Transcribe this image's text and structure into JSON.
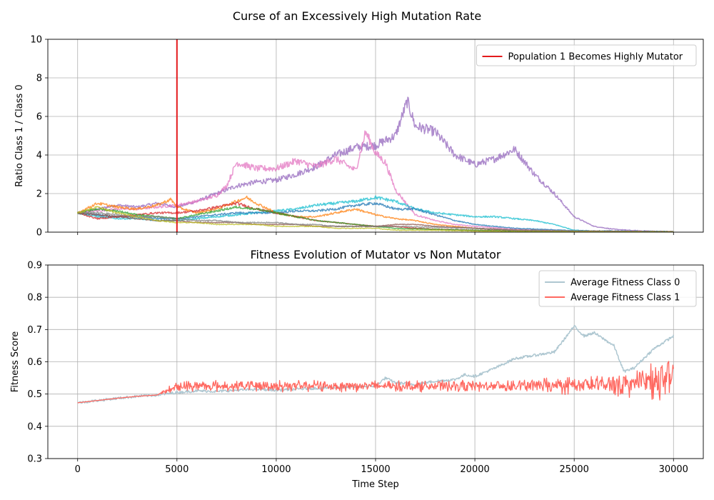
{
  "figure": {
    "suptitle": "Curse of an Excessively High Mutation Rate"
  },
  "chart_data": [
    {
      "type": "line",
      "title": "",
      "xlabel": "",
      "ylabel": "Ratio Class 1 / Class 0",
      "xlim": [
        -1500,
        31500
      ],
      "ylim": [
        0,
        10
      ],
      "xticks": [
        0,
        5000,
        10000,
        15000,
        20000,
        25000,
        30000
      ],
      "yticks": [
        0,
        2,
        4,
        6,
        8,
        10
      ],
      "show_xtick_labels": false,
      "grid": true,
      "legend_position": "top-right",
      "vline": {
        "x": 5000,
        "label": "Population 1 Becomes Highly Mutator",
        "color": "#e41a1c"
      },
      "series": [
        {
          "color": "#9467bd",
          "x": [
            0,
            1000,
            2000,
            3000,
            4000,
            5000,
            6000,
            7000,
            8000,
            9000,
            10000,
            11000,
            12000,
            13000,
            14000,
            15000,
            16000,
            16600,
            17000,
            18000,
            19000,
            20000,
            21000,
            22000,
            23000,
            24000,
            25000,
            26000,
            27000,
            28000,
            29000,
            30000
          ],
          "y": [
            1.0,
            1.2,
            1.4,
            1.3,
            1.5,
            1.3,
            1.6,
            2.0,
            2.4,
            2.6,
            2.7,
            3.0,
            3.4,
            4.0,
            4.4,
            4.5,
            5.0,
            6.8,
            5.5,
            5.2,
            4.0,
            3.5,
            3.8,
            4.3,
            3.0,
            2.0,
            0.8,
            0.3,
            0.15,
            0.08,
            0.05,
            0.02
          ]
        },
        {
          "color": "#e377c2",
          "x": [
            0,
            1000,
            2000,
            3000,
            4000,
            5000,
            6000,
            7000,
            7500,
            8000,
            9000,
            10000,
            11000,
            12000,
            13000,
            14000,
            14500,
            15000,
            15500,
            16000,
            17000,
            18000,
            19000,
            20000,
            22000,
            25000,
            30000
          ],
          "y": [
            1.0,
            1.1,
            1.2,
            1.2,
            1.3,
            1.4,
            1.6,
            1.9,
            2.4,
            3.6,
            3.3,
            3.3,
            3.7,
            3.4,
            3.8,
            3.2,
            5.2,
            4.1,
            3.6,
            2.2,
            0.9,
            0.6,
            0.4,
            0.3,
            0.15,
            0.06,
            0.02
          ]
        },
        {
          "color": "#17becf",
          "x": [
            0,
            1000,
            2000,
            3000,
            4000,
            5000,
            6000,
            7000,
            8000,
            9000,
            10000,
            11000,
            12000,
            13000,
            14000,
            15000,
            16000,
            17000,
            18000,
            19000,
            20000,
            21000,
            22000,
            23000,
            24000,
            25000,
            26000,
            30000
          ],
          "y": [
            1.0,
            0.8,
            0.7,
            0.7,
            0.6,
            0.6,
            0.7,
            0.8,
            0.9,
            1.0,
            1.1,
            1.2,
            1.4,
            1.5,
            1.6,
            1.8,
            1.6,
            1.2,
            1.0,
            0.9,
            0.8,
            0.8,
            0.7,
            0.6,
            0.4,
            0.1,
            0.05,
            0.03
          ]
        },
        {
          "color": "#1f77b4",
          "x": [
            0,
            1000,
            2000,
            3000,
            4000,
            5000,
            6000,
            7000,
            8000,
            9000,
            10000,
            11000,
            12000,
            13000,
            14000,
            15000,
            16000,
            17000,
            18000,
            19000,
            20000,
            22000,
            25000,
            30000
          ],
          "y": [
            1.0,
            0.9,
            0.8,
            0.8,
            0.7,
            0.7,
            0.8,
            0.9,
            1.0,
            1.0,
            1.0,
            1.1,
            1.1,
            1.2,
            1.4,
            1.5,
            1.2,
            1.2,
            0.9,
            0.6,
            0.4,
            0.2,
            0.08,
            0.02
          ]
        },
        {
          "color": "#ff7f0e",
          "x": [
            0,
            1000,
            2000,
            3000,
            4000,
            4700,
            5000,
            6000,
            7000,
            8000,
            8500,
            9000,
            10000,
            11000,
            12000,
            13000,
            14000,
            15000,
            16000,
            17000,
            18000,
            19000,
            20000,
            22000,
            25000,
            30000
          ],
          "y": [
            1.0,
            1.5,
            1.3,
            1.2,
            1.4,
            1.7,
            1.3,
            1.0,
            1.2,
            1.6,
            1.8,
            1.5,
            1.0,
            0.8,
            0.8,
            1.0,
            1.2,
            0.9,
            0.7,
            0.6,
            0.4,
            0.3,
            0.2,
            0.1,
            0.05,
            0.02
          ]
        },
        {
          "color": "#d62728",
          "x": [
            0,
            1000,
            2000,
            3000,
            4000,
            5000,
            6000,
            7000,
            8000,
            9000,
            10000,
            11000,
            12000,
            13000,
            14000,
            15000,
            16000,
            17000,
            18000,
            20000,
            22000,
            25000,
            30000
          ],
          "y": [
            1.0,
            0.7,
            0.8,
            0.9,
            1.0,
            1.0,
            1.1,
            1.3,
            1.5,
            1.2,
            1.0,
            0.8,
            0.6,
            0.5,
            0.4,
            0.3,
            0.3,
            0.2,
            0.15,
            0.1,
            0.06,
            0.03,
            0.01
          ]
        },
        {
          "color": "#2ca02c",
          "x": [
            0,
            1000,
            2000,
            3000,
            4000,
            5000,
            6000,
            7000,
            8000,
            9000,
            10000,
            11000,
            12000,
            13000,
            14000,
            15000,
            16000,
            18000,
            20000,
            22000,
            25000,
            30000
          ],
          "y": [
            1.0,
            1.2,
            1.1,
            0.9,
            0.8,
            0.7,
            0.9,
            1.1,
            1.3,
            1.2,
            1.0,
            0.8,
            0.6,
            0.5,
            0.4,
            0.3,
            0.2,
            0.15,
            0.1,
            0.05,
            0.03,
            0.01
          ]
        },
        {
          "color": "#8c564b",
          "x": [
            0,
            1000,
            2000,
            3000,
            4000,
            5000,
            6000,
            7000,
            8000,
            9000,
            10000,
            11000,
            12000,
            13000,
            14000,
            15000,
            16000,
            17000,
            18000,
            20000,
            22000,
            25000,
            30000
          ],
          "y": [
            1.0,
            0.9,
            0.8,
            0.7,
            0.6,
            0.6,
            0.5,
            0.5,
            0.5,
            0.4,
            0.4,
            0.4,
            0.3,
            0.3,
            0.3,
            0.3,
            0.4,
            0.4,
            0.3,
            0.2,
            0.1,
            0.05,
            0.02
          ]
        },
        {
          "color": "#7f7f7f",
          "x": [
            0,
            1000,
            2000,
            3000,
            4000,
            5000,
            6000,
            7000,
            8000,
            9000,
            10000,
            11000,
            12000,
            13000,
            14000,
            15000,
            16000,
            18000,
            20000,
            22000,
            25000,
            30000
          ],
          "y": [
            1.0,
            1.0,
            0.9,
            0.8,
            0.8,
            0.7,
            0.6,
            0.6,
            0.5,
            0.5,
            0.5,
            0.4,
            0.4,
            0.3,
            0.3,
            0.3,
            0.3,
            0.25,
            0.2,
            0.1,
            0.05,
            0.02
          ]
        },
        {
          "color": "#bcbd22",
          "x": [
            0,
            1000,
            2000,
            3000,
            4000,
            5000,
            6000,
            7000,
            8000,
            9000,
            10000,
            11000,
            12000,
            13000,
            14000,
            15000,
            16000,
            18000,
            20000,
            22000,
            25000,
            30000
          ],
          "y": [
            1.0,
            1.3,
            1.0,
            0.8,
            0.6,
            0.5,
            0.5,
            0.4,
            0.4,
            0.4,
            0.3,
            0.3,
            0.3,
            0.2,
            0.2,
            0.2,
            0.1,
            0.1,
            0.05,
            0.03,
            0.02,
            0.01
          ]
        }
      ]
    },
    {
      "type": "line",
      "title": "Fitness Evolution of Mutator vs Non Mutator",
      "xlabel": "Time Step",
      "ylabel": "Fitness Score",
      "xlim": [
        -1500,
        31500
      ],
      "ylim": [
        0.3,
        0.9
      ],
      "xticks": [
        0,
        5000,
        10000,
        15000,
        20000,
        25000,
        30000
      ],
      "yticks": [
        0.3,
        0.4,
        0.5,
        0.6,
        0.7,
        0.8,
        0.9
      ],
      "show_xtick_labels": true,
      "grid": true,
      "legend_position": "top-right",
      "series": [
        {
          "name": "Average Fitness Class 0",
          "color": "#aec7d1",
          "x": [
            0,
            1000,
            2000,
            3000,
            4000,
            5000,
            6000,
            7000,
            8000,
            9000,
            10000,
            11000,
            12000,
            13000,
            14000,
            15000,
            15500,
            16000,
            17000,
            18000,
            19000,
            19500,
            20000,
            21000,
            22000,
            23000,
            24000,
            25000,
            25500,
            26000,
            27000,
            27500,
            28000,
            29000,
            30000
          ],
          "y": [
            0.473,
            0.48,
            0.487,
            0.493,
            0.497,
            0.505,
            0.51,
            0.508,
            0.512,
            0.515,
            0.512,
            0.515,
            0.518,
            0.52,
            0.522,
            0.525,
            0.55,
            0.535,
            0.53,
            0.54,
            0.545,
            0.56,
            0.555,
            0.58,
            0.61,
            0.62,
            0.63,
            0.71,
            0.68,
            0.69,
            0.65,
            0.57,
            0.58,
            0.64,
            0.68
          ]
        },
        {
          "name": "Average Fitness Class 1",
          "color": "#ff6961",
          "x": [
            0,
            1000,
            2000,
            3000,
            4000,
            5000,
            6000,
            10000,
            15000,
            20000,
            25000,
            27000,
            28000,
            29000,
            30000
          ],
          "y": [
            0.473,
            0.48,
            0.487,
            0.493,
            0.497,
            0.525,
            0.525,
            0.525,
            0.525,
            0.525,
            0.527,
            0.53,
            0.535,
            0.54,
            0.545
          ],
          "band": [
            0,
            0,
            0,
            0,
            0,
            0.02,
            0.02,
            0.02,
            0.02,
            0.02,
            0.03,
            0.04,
            0.05,
            0.06,
            0.07
          ]
        }
      ]
    }
  ]
}
